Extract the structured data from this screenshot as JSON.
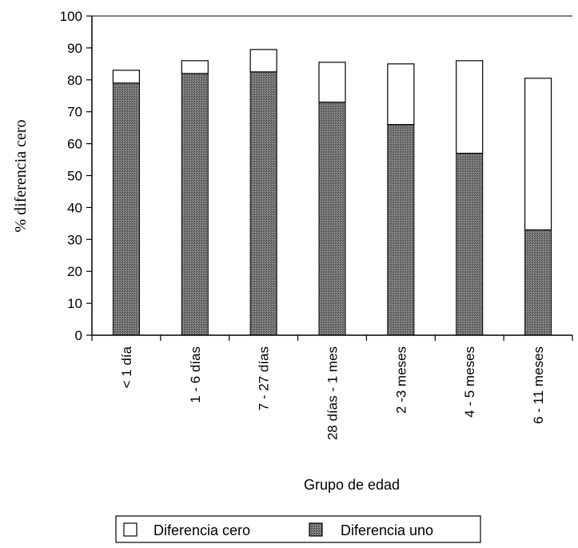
{
  "chart_data": {
    "type": "bar",
    "stacked": true,
    "title": "",
    "xlabel": "Grupo de edad",
    "ylabel": "% diferencia cero",
    "ylim": [
      0,
      100
    ],
    "yticks": [
      0,
      10,
      20,
      30,
      40,
      50,
      60,
      70,
      80,
      90,
      100
    ],
    "categories": [
      "< 1 día",
      "1 - 6 días",
      "7 - 27 días",
      "28 días - 1 mes",
      "2 -3 meses",
      "4 - 5 meses",
      "6 - 11 meses"
    ],
    "series": [
      {
        "name": "Diferencia uno",
        "values": [
          79,
          82,
          82.5,
          73,
          66,
          57,
          33
        ],
        "fill": "#6e6e6e"
      },
      {
        "name": "Diferencia cero",
        "values": [
          4,
          4,
          7,
          12.5,
          19,
          29,
          47.5
        ],
        "fill": "#ffffff"
      }
    ],
    "legend": {
      "position": "bottom",
      "items": [
        "Diferencia cero",
        "Diferencia uno"
      ]
    },
    "grid": false
  }
}
